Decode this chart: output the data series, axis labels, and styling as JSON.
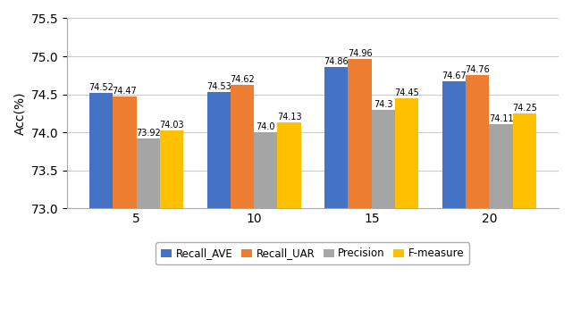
{
  "categories": [
    5,
    10,
    15,
    20
  ],
  "series": {
    "Recall_AVE": [
      74.52,
      74.53,
      74.86,
      74.67
    ],
    "Recall_UAR": [
      74.47,
      74.62,
      74.96,
      74.76
    ],
    "Precision": [
      73.92,
      74.0,
      74.3,
      74.11
    ],
    "F-measure": [
      74.03,
      74.13,
      74.45,
      74.25
    ]
  },
  "colors": {
    "Recall_AVE": "#4472C4",
    "Recall_UAR": "#ED7D31",
    "Precision": "#A5A5A5",
    "F-measure": "#FFC000"
  },
  "ylabel": "Acc(%)",
  "ylim": [
    73.0,
    75.5
  ],
  "yticks": [
    73.0,
    73.5,
    74.0,
    74.5,
    75.0,
    75.5
  ],
  "xtick_labels": [
    "5",
    "10",
    "15",
    "20"
  ],
  "bar_width": 0.2,
  "label_fontsize": 7.0,
  "axis_fontsize": 10,
  "legend_fontsize": 8.5,
  "figsize": [
    6.4,
    3.47
  ],
  "dpi": 100
}
